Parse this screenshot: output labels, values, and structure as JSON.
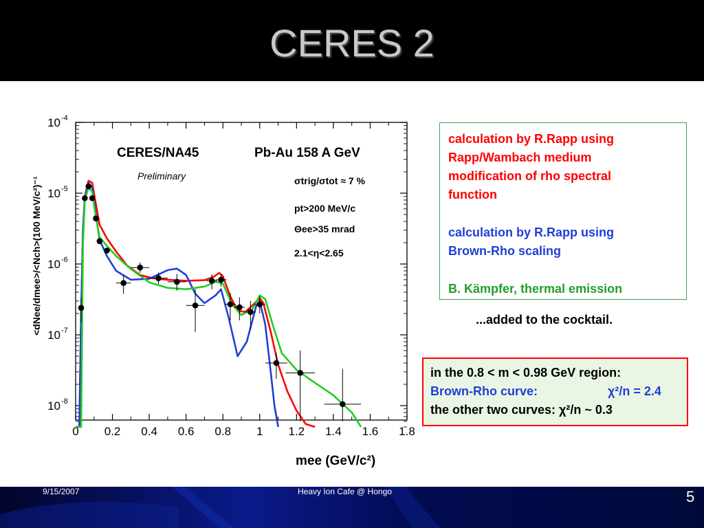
{
  "slide": {
    "title": "CERES 2",
    "footer_date": "9/15/2007",
    "footer_center": "Heavy Ion Cafe @ Hongo",
    "page_number": "5"
  },
  "notes": {
    "rapp_wambach": [
      "calculation by R.Rapp using",
      "Rapp/Wambach medium",
      "modification of rho spectral",
      "function"
    ],
    "brown_rho": [
      "calculation by R.Rapp using",
      "Brown-Rho scaling"
    ],
    "kampfer": "B. Kämpfer, thermal emission",
    "added": "...added to the cocktail."
  },
  "chi_box": {
    "line1": "in the  0.8 < m < 0.98 GeV region:",
    "line2_label": "Brown-Rho curve:",
    "line2_value": "χ²/n = 2.4",
    "line3": "the other two curves:  χ²/n ~ 0.3"
  },
  "colors": {
    "rapp_wambach": "#ff0000",
    "brown_rho": "#1f3fd6",
    "kampfer": "#22cc22",
    "box_border_green": "#3aa04a",
    "box_border_red": "#ff0000"
  },
  "chart_data": {
    "type": "scatter",
    "experiment": "CERES/NA45",
    "system": "Pb-Au 158 A GeV",
    "status": "Preliminary",
    "cuts": [
      "σtrig/σtot ≈ 7 %",
      "pt>200 MeV/c",
      "Θee>35 mrad",
      "2.1<η<2.65"
    ],
    "xlabel": "mee (GeV/c²)",
    "ylabel": "<dNee/dmee>/<Nch>(100 MeV/c²)⁻¹",
    "xlim": [
      0,
      1.8
    ],
    "ylim": [
      5e-09,
      0.0001
    ],
    "yscale": "log",
    "xticks": [
      "0",
      "0.2",
      "0.4",
      "0.6",
      "0.8",
      "1",
      "1.2",
      "1.4",
      "1.6",
      "1.8"
    ],
    "yticks": [
      {
        "value": 0.0001,
        "base": "10",
        "exp": "-4"
      },
      {
        "value": 1e-05,
        "base": "10",
        "exp": "-5"
      },
      {
        "value": 1e-06,
        "base": "10",
        "exp": "-6"
      },
      {
        "value": 1e-07,
        "base": "10",
        "exp": "-7"
      },
      {
        "value": 1e-08,
        "base": "10",
        "exp": "-8"
      }
    ],
    "points": [
      {
        "x": 0.03,
        "y": 2.4e-07,
        "ylo": 1.5e-07,
        "yhi": 3.3e-07,
        "xerr": 0.0
      },
      {
        "x": 0.05,
        "y": 8.5e-06,
        "ylo": 8.5e-06,
        "yhi": 8.5e-06,
        "xerr": 0.0
      },
      {
        "x": 0.07,
        "y": 1.25e-05,
        "ylo": 1.25e-05,
        "yhi": 1.25e-05,
        "xerr": 0.0
      },
      {
        "x": 0.09,
        "y": 8.5e-06,
        "ylo": 8.5e-06,
        "yhi": 8.5e-06,
        "xerr": 0.0
      },
      {
        "x": 0.11,
        "y": 4.4e-06,
        "ylo": 4.4e-06,
        "yhi": 4.4e-06,
        "xerr": 0.0
      },
      {
        "x": 0.13,
        "y": 2.1e-06,
        "ylo": 2.1e-06,
        "yhi": 2.1e-06,
        "xerr": 0.0
      },
      {
        "x": 0.17,
        "y": 1.55e-06,
        "ylo": 1.55e-06,
        "yhi": 1.55e-06,
        "xerr": 0.0
      },
      {
        "x": 0.26,
        "y": 5.4e-07,
        "ylo": 3.8e-07,
        "yhi": 7e-07,
        "xerr": 0.04
      },
      {
        "x": 0.35,
        "y": 8.9e-07,
        "ylo": 7.5e-07,
        "yhi": 1.05e-06,
        "xerr": 0.05
      },
      {
        "x": 0.45,
        "y": 6.3e-07,
        "ylo": 5.2e-07,
        "yhi": 7.6e-07,
        "xerr": 0.05
      },
      {
        "x": 0.55,
        "y": 5.6e-07,
        "ylo": 4.2e-07,
        "yhi": 7.2e-07,
        "xerr": 0.05
      },
      {
        "x": 0.65,
        "y": 2.6e-07,
        "ylo": 1.1e-07,
        "yhi": 4.4e-07,
        "xerr": 0.05
      },
      {
        "x": 0.74,
        "y": 5.8e-07,
        "ylo": 4.4e-07,
        "yhi": 7.2e-07,
        "xerr": 0.03
      },
      {
        "x": 0.79,
        "y": 6e-07,
        "ylo": 4.8e-07,
        "yhi": 7.2e-07,
        "xerr": 0.03
      },
      {
        "x": 0.84,
        "y": 2.7e-07,
        "ylo": 1.6e-07,
        "yhi": 3.9e-07,
        "xerr": 0.03
      },
      {
        "x": 0.89,
        "y": 2.45e-07,
        "ylo": 1.6e-07,
        "yhi": 3.4e-07,
        "xerr": 0.03
      },
      {
        "x": 0.95,
        "y": 2.1e-07,
        "ylo": 1.2e-07,
        "yhi": 3e-07,
        "xerr": 0.03
      },
      {
        "x": 1.0,
        "y": 2.7e-07,
        "ylo": 2e-07,
        "yhi": 3.5e-07,
        "xerr": 0.03
      },
      {
        "x": 1.09,
        "y": 4e-08,
        "ylo": 2.4e-08,
        "yhi": 5.6e-08,
        "xerr": 0.06
      },
      {
        "x": 1.22,
        "y": 2.9e-08,
        "ylo": 6e-09,
        "yhi": 6e-08,
        "xerr": 0.08
      },
      {
        "x": 1.45,
        "y": 1.05e-08,
        "ylo": 6e-09,
        "yhi": 3.3e-08,
        "xerr": 0.1
      }
    ],
    "series": [
      {
        "key": "rapp_wambach",
        "points": [
          [
            0.0,
            5e-09
          ],
          [
            0.02,
            5e-09
          ],
          [
            0.03,
            2e-07
          ],
          [
            0.04,
            3e-06
          ],
          [
            0.05,
            9e-06
          ],
          [
            0.07,
            1.5e-05
          ],
          [
            0.09,
            1.4e-05
          ],
          [
            0.11,
            7e-06
          ],
          [
            0.13,
            3.6e-06
          ],
          [
            0.17,
            2.3e-06
          ],
          [
            0.22,
            1.5e-06
          ],
          [
            0.28,
            9.5e-07
          ],
          [
            0.35,
            7e-07
          ],
          [
            0.42,
            6.3e-07
          ],
          [
            0.5,
            6e-07
          ],
          [
            0.6,
            5.8e-07
          ],
          [
            0.7,
            5.9e-07
          ],
          [
            0.75,
            6.6e-07
          ],
          [
            0.78,
            7.5e-07
          ],
          [
            0.8,
            6.7e-07
          ],
          [
            0.84,
            3.5e-07
          ],
          [
            0.88,
            2.2e-07
          ],
          [
            0.92,
            2.1e-07
          ],
          [
            0.96,
            2.6e-07
          ],
          [
            1.0,
            3.3e-07
          ],
          [
            1.02,
            2.8e-07
          ],
          [
            1.06,
            1.1e-07
          ],
          [
            1.1,
            3.8e-08
          ],
          [
            1.15,
            1.6e-08
          ],
          [
            1.2,
            8.5e-09
          ],
          [
            1.25,
            5.5e-09
          ],
          [
            1.3,
            5e-09
          ]
        ]
      },
      {
        "key": "brown_rho",
        "points": [
          [
            0.0,
            5e-09
          ],
          [
            0.02,
            5e-09
          ],
          [
            0.03,
            2e-07
          ],
          [
            0.04,
            3e-06
          ],
          [
            0.05,
            9e-06
          ],
          [
            0.07,
            1.4e-05
          ],
          [
            0.09,
            1.2e-05
          ],
          [
            0.11,
            5e-06
          ],
          [
            0.13,
            2.2e-06
          ],
          [
            0.17,
            1.3e-06
          ],
          [
            0.22,
            8e-07
          ],
          [
            0.3,
            6e-07
          ],
          [
            0.4,
            6.2e-07
          ],
          [
            0.5,
            8.2e-07
          ],
          [
            0.55,
            8.6e-07
          ],
          [
            0.6,
            7e-07
          ],
          [
            0.65,
            3.8e-07
          ],
          [
            0.7,
            2.8e-07
          ],
          [
            0.76,
            3.6e-07
          ],
          [
            0.79,
            4.4e-07
          ],
          [
            0.83,
            1.8e-07
          ],
          [
            0.88,
            5e-08
          ],
          [
            0.93,
            8e-08
          ],
          [
            0.98,
            2.5e-07
          ],
          [
            1.0,
            3e-07
          ],
          [
            1.03,
            1.4e-07
          ],
          [
            1.06,
            3e-08
          ],
          [
            1.08,
            1e-08
          ],
          [
            1.1,
            5e-09
          ]
        ]
      },
      {
        "key": "kampfer",
        "points": [
          [
            0.0,
            5e-09
          ],
          [
            0.03,
            5e-09
          ],
          [
            0.04,
            2e-06
          ],
          [
            0.05,
            8e-06
          ],
          [
            0.07,
            1.2e-05
          ],
          [
            0.09,
            1.05e-05
          ],
          [
            0.11,
            4.5e-06
          ],
          [
            0.13,
            2.4e-06
          ],
          [
            0.17,
            1.8e-06
          ],
          [
            0.22,
            1.3e-06
          ],
          [
            0.3,
            8.5e-07
          ],
          [
            0.4,
            5.5e-07
          ],
          [
            0.5,
            4.6e-07
          ],
          [
            0.6,
            4.4e-07
          ],
          [
            0.7,
            4.8e-07
          ],
          [
            0.76,
            5.6e-07
          ],
          [
            0.8,
            5.3e-07
          ],
          [
            0.85,
            2.7e-07
          ],
          [
            0.9,
            1.9e-07
          ],
          [
            0.96,
            2.3e-07
          ],
          [
            1.0,
            3.6e-07
          ],
          [
            1.03,
            3.2e-07
          ],
          [
            1.07,
            1.4e-07
          ],
          [
            1.12,
            5.5e-08
          ],
          [
            1.2,
            3.2e-08
          ],
          [
            1.3,
            2.1e-08
          ],
          [
            1.4,
            1.4e-08
          ],
          [
            1.5,
            8e-09
          ],
          [
            1.55,
            5e-09
          ]
        ]
      }
    ]
  }
}
